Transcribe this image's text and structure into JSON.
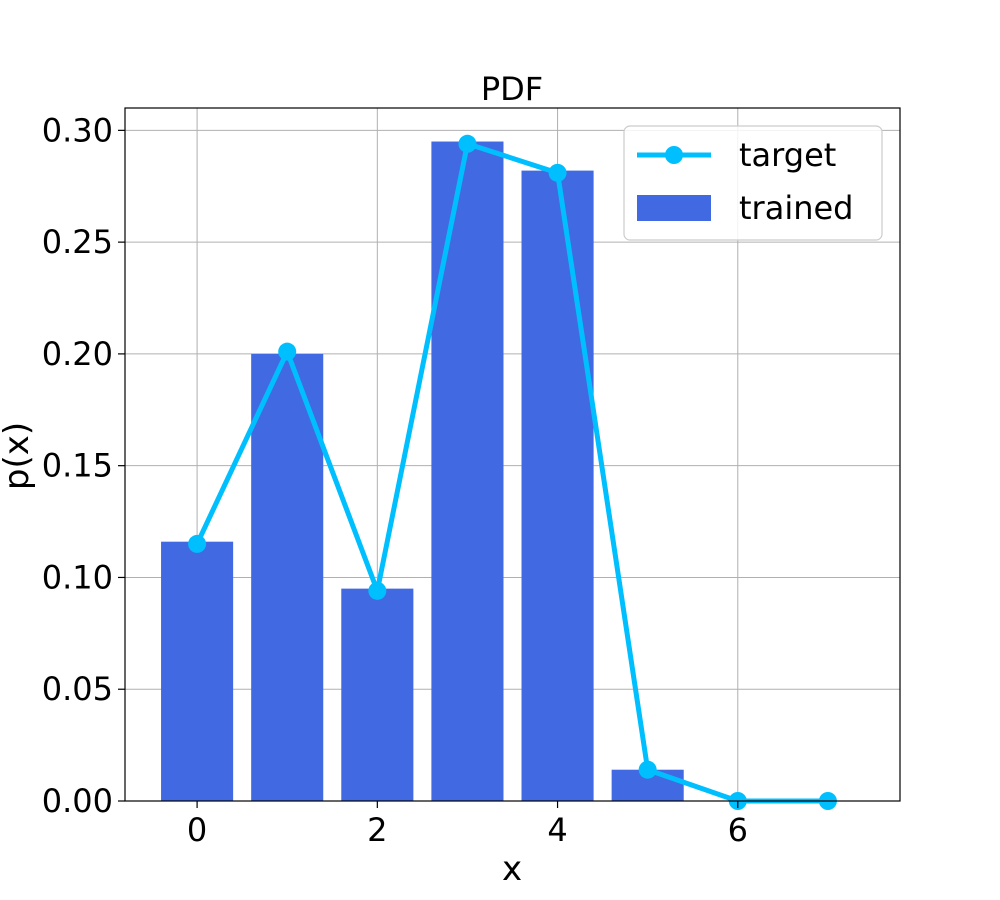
{
  "chart_data": {
    "type": "bar",
    "title": "PDF",
    "xlabel": "x",
    "ylabel": "p(x)",
    "xlim": [
      -0.8,
      7.8
    ],
    "ylim": [
      0,
      0.31
    ],
    "xticks": [
      0,
      2,
      4,
      6
    ],
    "yticks": [
      0.0,
      0.05,
      0.1,
      0.15,
      0.2,
      0.25,
      0.3
    ],
    "ytick_labels": [
      "0.00",
      "0.05",
      "0.10",
      "0.15",
      "0.20",
      "0.25",
      "0.30"
    ],
    "grid": true,
    "legend_position": "top-right",
    "series": [
      {
        "name": "target",
        "kind": "line",
        "color": "#00bfff",
        "x": [
          0,
          1,
          2,
          3,
          4,
          5,
          6,
          7
        ],
        "values": [
          0.115,
          0.201,
          0.094,
          0.294,
          0.281,
          0.014,
          0.0,
          0.0
        ]
      },
      {
        "name": "trained",
        "kind": "bar",
        "color": "#4169e1",
        "x": [
          0,
          1,
          2,
          3,
          4,
          5
        ],
        "values": [
          0.116,
          0.2,
          0.095,
          0.295,
          0.282,
          0.014
        ]
      }
    ]
  }
}
